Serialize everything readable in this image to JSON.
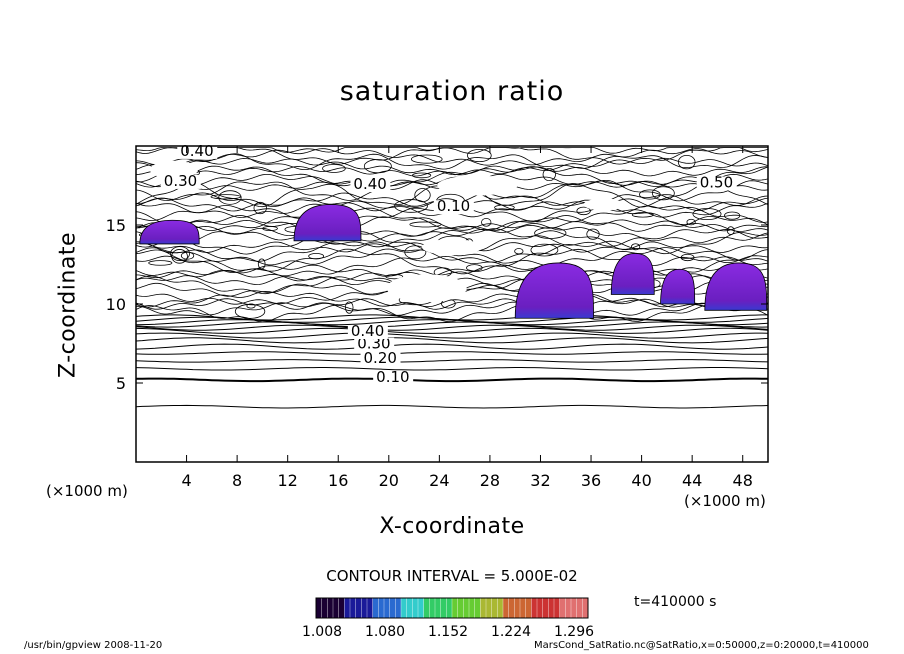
{
  "chart_data": {
    "type": "contour",
    "title": "saturation ratio",
    "xlabel": "X-coordinate",
    "ylabel": "Z-coordinate",
    "x_unit": "(×1000 m)",
    "y_unit": "(×1000 m)",
    "xlim": [
      0,
      50
    ],
    "ylim": [
      0,
      20
    ],
    "x_ticks": [
      4,
      8,
      12,
      16,
      20,
      24,
      28,
      32,
      36,
      40,
      44,
      48
    ],
    "y_ticks": [
      5,
      10,
      15
    ],
    "contour_labels": [
      {
        "text": "0.10",
        "x": 19,
        "z": 5.2
      },
      {
        "text": "0.20",
        "x": 18,
        "z": 6.4
      },
      {
        "text": "0.30",
        "x": 17.5,
        "z": 7.3
      },
      {
        "text": "0.40",
        "x": 17,
        "z": 8.1
      },
      {
        "text": "0.40",
        "x": 3.5,
        "z": 19.5
      },
      {
        "text": "0.30",
        "x": 2.2,
        "z": 17.6
      },
      {
        "text": "0.40",
        "x": 17.2,
        "z": 17.4
      },
      {
        "text": "0.10",
        "x": 23.8,
        "z": 16.0
      },
      {
        "text": "0.50",
        "x": 44.6,
        "z": 17.5
      }
    ],
    "contour_interval_text": "CONTOUR INTERVAL = 5.000E-02",
    "colorbar": {
      "tick_labels": [
        "1.008",
        "1.080",
        "1.152",
        "1.224",
        "1.296"
      ],
      "min": 1.008,
      "max": 1.296
    },
    "time_label": "t=410000 s",
    "shaded_regions": [
      {
        "x": [
          0.3,
          5
        ],
        "z": [
          13.8,
          15.3
        ]
      },
      {
        "x": [
          12.5,
          17.8
        ],
        "z": [
          14.0,
          16.3
        ]
      },
      {
        "x": [
          30,
          36.2
        ],
        "z": [
          9.1,
          12.6
        ]
      },
      {
        "x": [
          37.6,
          41
        ],
        "z": [
          10.6,
          13.2
        ]
      },
      {
        "x": [
          41.5,
          44.2
        ],
        "z": [
          10.0,
          12.2
        ]
      },
      {
        "x": [
          45,
          49.9
        ],
        "z": [
          9.6,
          12.6
        ]
      }
    ]
  },
  "footer": {
    "left": "/usr/bin/gpview   2008-11-20",
    "right": "MarsCond_SatRatio.nc@SatRatio,x=0:50000,z=0:20000,t=410000"
  }
}
